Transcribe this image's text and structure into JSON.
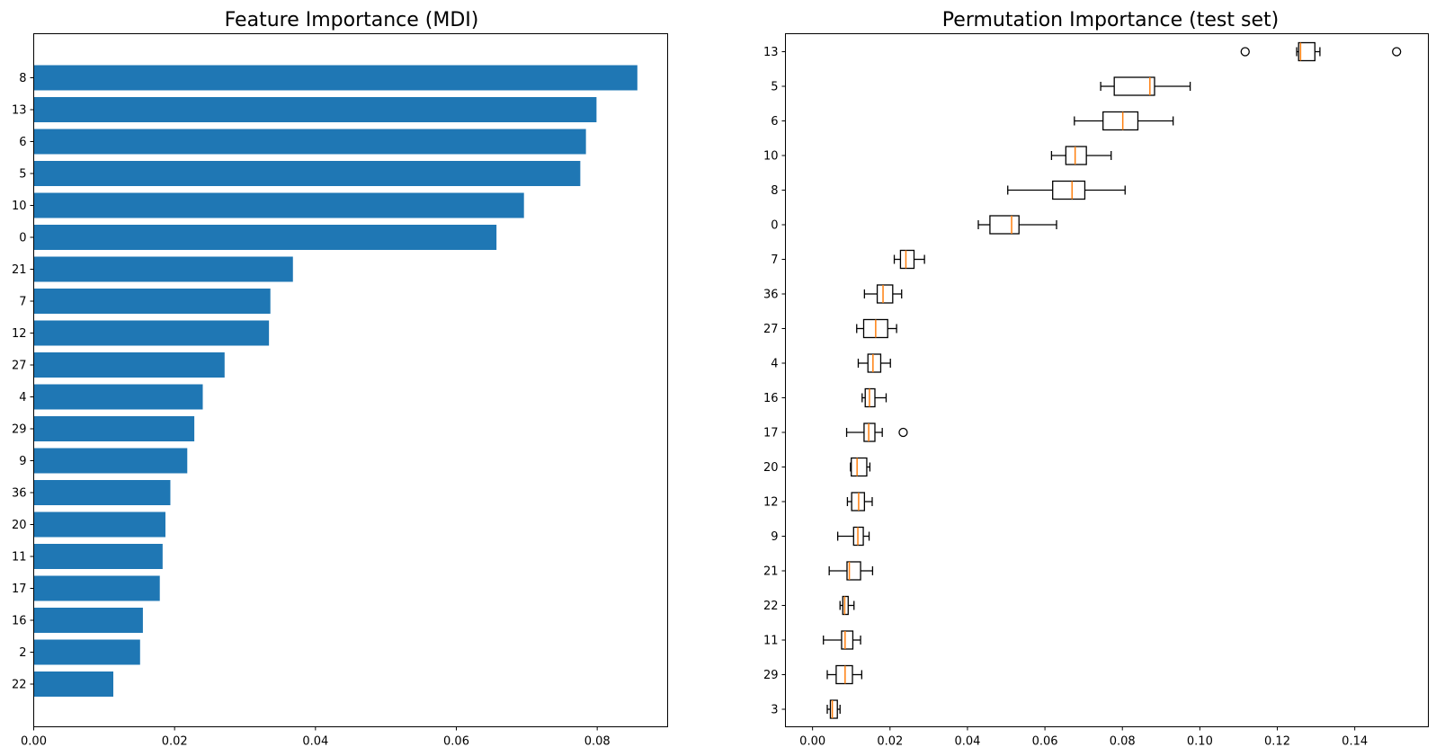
{
  "chart_data": [
    {
      "type": "bar",
      "orientation": "horizontal",
      "title": "Feature Importance (MDI)",
      "xlim": [
        0,
        0.09
      ],
      "xticks": [
        "0.00",
        "0.02",
        "0.04",
        "0.06",
        "0.08"
      ],
      "xtick_values": [
        0,
        0.02,
        0.04,
        0.06,
        0.08
      ],
      "categories": [
        "8",
        "13",
        "6",
        "5",
        "10",
        "0",
        "21",
        "7",
        "12",
        "27",
        "4",
        "29",
        "9",
        "36",
        "20",
        "11",
        "17",
        "16",
        "2",
        "22"
      ],
      "values": [
        0.0857,
        0.0799,
        0.0784,
        0.0776,
        0.0696,
        0.0657,
        0.0368,
        0.0336,
        0.0334,
        0.0271,
        0.024,
        0.0228,
        0.0218,
        0.0194,
        0.0187,
        0.0183,
        0.0179,
        0.0155,
        0.0151,
        0.0113
      ],
      "bar_color": "#1f77b4",
      "grid": false
    },
    {
      "type": "boxplot",
      "orientation": "horizontal",
      "title": "Permutation Importance (test set)",
      "xlim": [
        -0.007,
        0.159
      ],
      "xticks": [
        "0.00",
        "0.02",
        "0.04",
        "0.06",
        "0.08",
        "0.10",
        "0.12",
        "0.14"
      ],
      "xtick_values": [
        0,
        0.02,
        0.04,
        0.06,
        0.08,
        0.1,
        0.12,
        0.14
      ],
      "categories": [
        "13",
        "5",
        "6",
        "10",
        "8",
        "0",
        "7",
        "36",
        "27",
        "4",
        "16",
        "17",
        "20",
        "12",
        "9",
        "21",
        "22",
        "11",
        "29",
        "3"
      ],
      "boxes": [
        {
          "whislo": 0.125,
          "q1": 0.1255,
          "med": 0.126,
          "q3": 0.1297,
          "whishi": 0.131,
          "fliers": [
            0.1117,
            0.1508
          ]
        },
        {
          "whislo": 0.0744,
          "q1": 0.0779,
          "med": 0.0871,
          "q3": 0.0883,
          "whishi": 0.0975,
          "fliers": []
        },
        {
          "whislo": 0.0676,
          "q1": 0.075,
          "med": 0.0801,
          "q3": 0.084,
          "whishi": 0.0931,
          "fliers": []
        },
        {
          "whislo": 0.0617,
          "q1": 0.0654,
          "med": 0.0678,
          "q3": 0.0707,
          "whishi": 0.0771,
          "fliers": []
        },
        {
          "whislo": 0.0504,
          "q1": 0.062,
          "med": 0.067,
          "q3": 0.0703,
          "whishi": 0.0807,
          "fliers": []
        },
        {
          "whislo": 0.0428,
          "q1": 0.0458,
          "med": 0.0514,
          "q3": 0.0533,
          "whishi": 0.063,
          "fliers": []
        },
        {
          "whislo": 0.0211,
          "q1": 0.0227,
          "med": 0.0241,
          "q3": 0.0262,
          "whishi": 0.0289,
          "fliers": []
        },
        {
          "whislo": 0.0134,
          "q1": 0.0167,
          "med": 0.0182,
          "q3": 0.0207,
          "whishi": 0.023,
          "fliers": []
        },
        {
          "whislo": 0.0114,
          "q1": 0.0132,
          "med": 0.0163,
          "q3": 0.0194,
          "whishi": 0.0217,
          "fliers": []
        },
        {
          "whislo": 0.0118,
          "q1": 0.0143,
          "med": 0.0156,
          "q3": 0.0176,
          "whishi": 0.0201,
          "fliers": []
        },
        {
          "whislo": 0.0128,
          "q1": 0.0136,
          "med": 0.0147,
          "q3": 0.0161,
          "whishi": 0.019,
          "fliers": []
        },
        {
          "whislo": 0.0088,
          "q1": 0.0133,
          "med": 0.0145,
          "q3": 0.0161,
          "whishi": 0.018,
          "fliers": [
            0.0234
          ]
        },
        {
          "whislo": 0.0098,
          "q1": 0.01,
          "med": 0.0115,
          "q3": 0.014,
          "whishi": 0.0148,
          "fliers": []
        },
        {
          "whislo": 0.009,
          "q1": 0.0101,
          "med": 0.0119,
          "q3": 0.0134,
          "whishi": 0.0154,
          "fliers": []
        },
        {
          "whislo": 0.0065,
          "q1": 0.0106,
          "med": 0.0117,
          "q3": 0.0131,
          "whishi": 0.0146,
          "fliers": []
        },
        {
          "whislo": 0.0043,
          "q1": 0.0089,
          "med": 0.0095,
          "q3": 0.0124,
          "whishi": 0.0155,
          "fliers": []
        },
        {
          "whislo": 0.0071,
          "q1": 0.0078,
          "med": 0.0083,
          "q3": 0.0092,
          "whishi": 0.0107,
          "fliers": []
        },
        {
          "whislo": 0.0028,
          "q1": 0.0075,
          "med": 0.0084,
          "q3": 0.0104,
          "whishi": 0.0124,
          "fliers": []
        },
        {
          "whislo": 0.0038,
          "q1": 0.0061,
          "med": 0.0084,
          "q3": 0.0103,
          "whishi": 0.0127,
          "fliers": []
        },
        {
          "whislo": 0.0038,
          "q1": 0.0046,
          "med": 0.0051,
          "q3": 0.0064,
          "whishi": 0.0071,
          "fliers": []
        }
      ],
      "median_color": "#ff7f0e",
      "grid": false
    }
  ]
}
